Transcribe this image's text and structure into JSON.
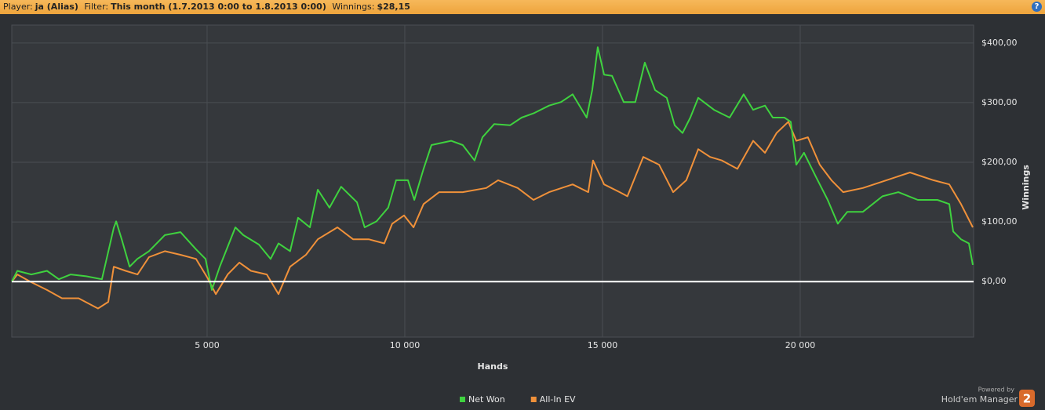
{
  "header": {
    "player_label": "Player:",
    "player": "ja (Alias)",
    "filter_label": "Filter:",
    "filter": "This month (1.7.2013 0:00 to 1.8.2013 0:00)",
    "winnings_label": "Winnings:",
    "winnings": "$28,15",
    "help": "?"
  },
  "footer": {
    "powered": "Powered by",
    "brand": "Hold'em Manager",
    "logo": "2"
  },
  "chart_data": {
    "type": "line",
    "xlabel": "Hands",
    "ylabel": "Winnings",
    "xlim": [
      60,
      24385
    ],
    "ylim": [
      -93,
      430
    ],
    "xticks": [
      {
        "value": 5000,
        "label": "5 000"
      },
      {
        "value": 10000,
        "label": "10 000"
      },
      {
        "value": 15000,
        "label": "15 000"
      },
      {
        "value": 20000,
        "label": "20 000"
      }
    ],
    "yticks": [
      {
        "value": 0,
        "label": "$0,00"
      },
      {
        "value": 100,
        "label": "$100,00"
      },
      {
        "value": 200,
        "label": "$200,00"
      },
      {
        "value": 300,
        "label": "$300,00"
      },
      {
        "value": 400,
        "label": "$400,00"
      }
    ],
    "grid": true,
    "zero_line": true,
    "series": [
      {
        "name": "Net Won",
        "color": "#3fd23f",
        "x": [
          60,
          200,
          555,
          950,
          1250,
          1550,
          1940,
          2340,
          2640,
          2700,
          2840,
          3040,
          3235,
          3530,
          3930,
          4325,
          4720,
          4960,
          5040,
          5120,
          5320,
          5715,
          5915,
          6310,
          6605,
          6805,
          7100,
          7300,
          7600,
          7800,
          8095,
          8390,
          8790,
          8985,
          9285,
          9580,
          9780,
          10080,
          10240,
          10475,
          10675,
          11170,
          11465,
          11765,
          11965,
          12260,
          12660,
          12955,
          13255,
          13650,
          13950,
          14245,
          14600,
          14740,
          14880,
          15040,
          15240,
          15535,
          15830,
          16070,
          16330,
          16625,
          16825,
          17025,
          17220,
          17420,
          17820,
          18215,
          18570,
          18810,
          19110,
          19305,
          19600,
          19760,
          19900,
          20095,
          20395,
          20695,
          20950,
          21190,
          21585,
          22080,
          22480,
          22975,
          23470,
          23770,
          23870,
          24065,
          24265,
          24365
        ],
        "values": [
          0,
          18,
          12,
          18,
          4,
          12,
          9,
          4,
          90,
          101,
          71,
          25,
          38,
          51,
          78,
          83,
          54,
          38,
          12,
          -14,
          25,
          91,
          78,
          62,
          38,
          64,
          51,
          107,
          91,
          154,
          124,
          159,
          133,
          91,
          101,
          124,
          170,
          170,
          137,
          189,
          229,
          236,
          229,
          203,
          242,
          264,
          262,
          275,
          282,
          295,
          301,
          314,
          275,
          321,
          393,
          347,
          345,
          301,
          301,
          367,
          321,
          308,
          262,
          249,
          275,
          308,
          288,
          275,
          314,
          288,
          295,
          275,
          275,
          268,
          196,
          216,
          176,
          137,
          97,
          117,
          117,
          143,
          150,
          137,
          137,
          130,
          84,
          71,
          64,
          28
        ]
      },
      {
        "name": "All-In EV",
        "color": "#f0913a",
        "x": [
          60,
          200,
          555,
          950,
          1330,
          1750,
          2240,
          2500,
          2640,
          2940,
          3240,
          3530,
          3930,
          4325,
          4720,
          5020,
          5220,
          5520,
          5815,
          6110,
          6510,
          6805,
          7100,
          7500,
          7800,
          8295,
          8690,
          9085,
          9480,
          9680,
          9980,
          10220,
          10475,
          10870,
          11465,
          12060,
          12360,
          12855,
          13255,
          13650,
          14245,
          14640,
          14760,
          15040,
          15435,
          15630,
          16030,
          16430,
          16785,
          17120,
          17420,
          17720,
          18020,
          18410,
          18810,
          19110,
          19400,
          19700,
          19900,
          20195,
          20495,
          20790,
          21085,
          21585,
          22180,
          22775,
          23370,
          23770,
          24065,
          24365
        ],
        "values": [
          0,
          12,
          -1,
          -14,
          -28,
          -28,
          -45,
          -34,
          25,
          18,
          12,
          41,
          51,
          45,
          38,
          5,
          -21,
          12,
          32,
          18,
          12,
          -21,
          25,
          45,
          71,
          91,
          71,
          71,
          64,
          97,
          111,
          91,
          130,
          150,
          150,
          157,
          170,
          157,
          137,
          150,
          163,
          150,
          203,
          163,
          150,
          143,
          209,
          196,
          150,
          170,
          222,
          209,
          203,
          189,
          236,
          216,
          249,
          268,
          236,
          242,
          196,
          170,
          150,
          157,
          170,
          183,
          170,
          163,
          130,
          91
        ]
      }
    ]
  }
}
